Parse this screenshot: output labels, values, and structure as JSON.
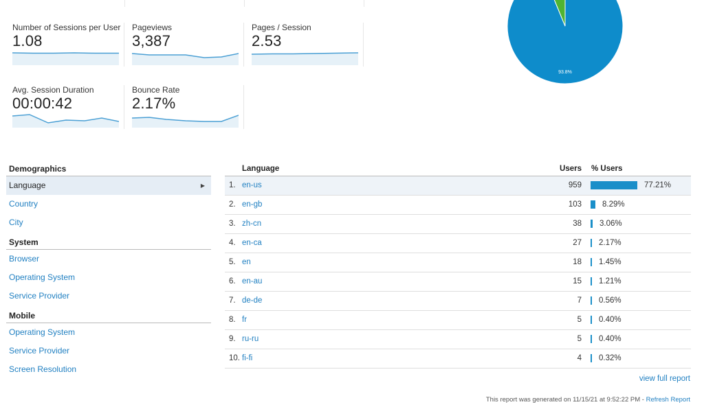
{
  "metrics": {
    "sessions_per_user": {
      "label": "Number of Sessions per User",
      "value": "1.08"
    },
    "pageviews": {
      "label": "Pageviews",
      "value": "3,387"
    },
    "pages_per_session": {
      "label": "Pages / Session",
      "value": "2.53"
    },
    "avg_session_duration": {
      "label": "Avg. Session Duration",
      "value": "00:00:42"
    },
    "bounce_rate": {
      "label": "Bounce Rate",
      "value": "2.17%"
    }
  },
  "pie": {
    "slices": [
      {
        "name": "blue",
        "percent": 93.8,
        "color": "#0e8ccb",
        "label": "93.8%"
      },
      {
        "name": "green",
        "percent": 6.2,
        "color": "#50b432",
        "label": ""
      }
    ]
  },
  "nav": {
    "demographics": {
      "title": "Demographics",
      "items": [
        "Language",
        "Country",
        "City"
      ]
    },
    "system": {
      "title": "System",
      "items": [
        "Browser",
        "Operating System",
        "Service Provider"
      ]
    },
    "mobile": {
      "title": "Mobile",
      "items": [
        "Operating System",
        "Service Provider",
        "Screen Resolution"
      ]
    },
    "active_item": "Language"
  },
  "table": {
    "headers": {
      "language": "Language",
      "users": "Users",
      "pct_users": "% Users"
    },
    "rows": [
      {
        "num": "1.",
        "lang": "en-us",
        "users": "959",
        "pct": "77.21%",
        "pct_value": 77.21
      },
      {
        "num": "2.",
        "lang": "en-gb",
        "users": "103",
        "pct": "8.29%",
        "pct_value": 8.29
      },
      {
        "num": "3.",
        "lang": "zh-cn",
        "users": "38",
        "pct": "3.06%",
        "pct_value": 3.06
      },
      {
        "num": "4.",
        "lang": "en-ca",
        "users": "27",
        "pct": "2.17%",
        "pct_value": 2.17
      },
      {
        "num": "5.",
        "lang": "en",
        "users": "18",
        "pct": "1.45%",
        "pct_value": 1.45
      },
      {
        "num": "6.",
        "lang": "en-au",
        "users": "15",
        "pct": "1.21%",
        "pct_value": 1.21
      },
      {
        "num": "7.",
        "lang": "de-de",
        "users": "7",
        "pct": "0.56%",
        "pct_value": 0.56
      },
      {
        "num": "8.",
        "lang": "fr",
        "users": "5",
        "pct": "0.40%",
        "pct_value": 0.4
      },
      {
        "num": "9.",
        "lang": "ru-ru",
        "users": "5",
        "pct": "0.40%",
        "pct_value": 0.4
      },
      {
        "num": "10.",
        "lang": "fi-fi",
        "users": "4",
        "pct": "0.32%",
        "pct_value": 0.32
      }
    ],
    "bar_color": "#1a8fc9"
  },
  "links": {
    "view_full_report": "view full report"
  },
  "footer": {
    "generated": "This report was generated on 11/15/21 at 9:52:22 PM - ",
    "refresh": "Refresh Report"
  }
}
